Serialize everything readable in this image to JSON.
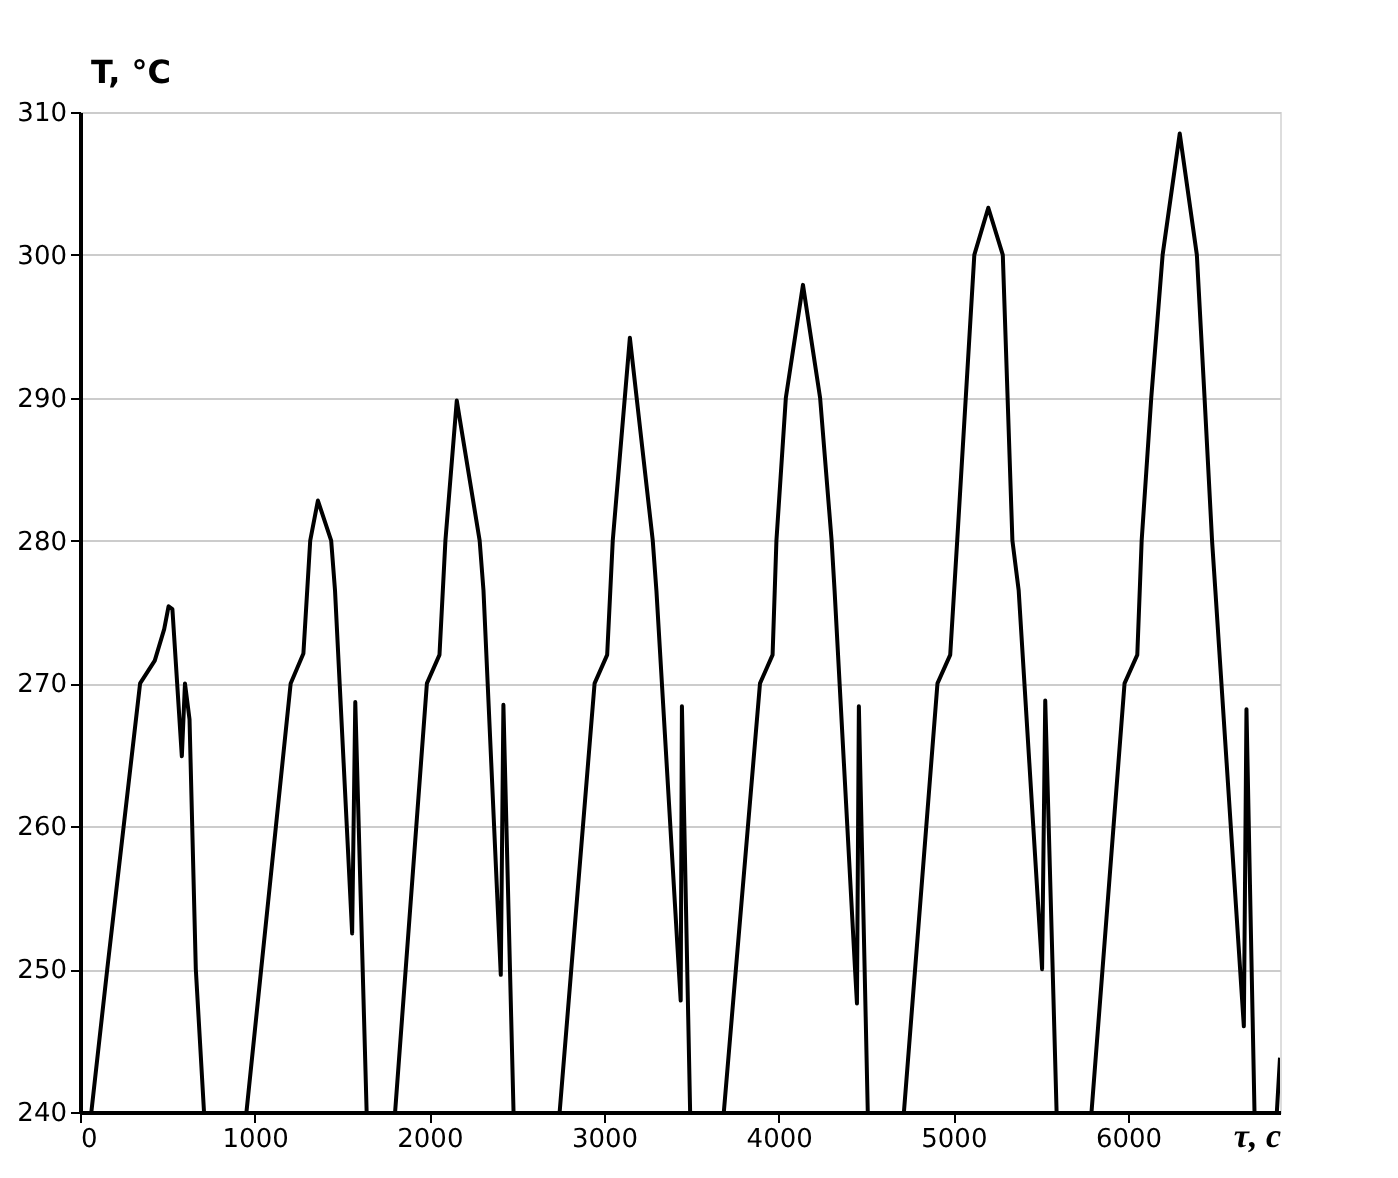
{
  "chart_data": {
    "type": "line",
    "xlabel": "τ, c",
    "ylabel": "T, °C",
    "xlim": [
      0,
      6870
    ],
    "ylim": [
      240,
      310
    ],
    "xticks": [
      0,
      1000,
      2000,
      3000,
      4000,
      5000,
      6000
    ],
    "yticks": [
      240,
      250,
      260,
      270,
      280,
      290,
      300,
      310
    ],
    "grid": "y",
    "marker": "none",
    "line_style": "solid",
    "x": [
      65,
      156,
      344,
      428,
      482,
      507,
      529,
      583,
      601,
      627,
      663,
      710,
      800,
      953,
      1206,
      1279,
      1318,
      1362,
      1438,
      1460,
      1558,
      1576,
      1641,
      1700,
      1804,
      1986,
      2058,
      2092,
      2157,
      2288,
      2310,
      2409,
      2424,
      2482,
      2600,
      2746,
      2946,
      3018,
      3050,
      3148,
      3279,
      3300,
      3428,
      3439,
      3446,
      3493,
      3600,
      3686,
      3893,
      3965,
      3987,
      4041,
      4139,
      4237,
      4303,
      4320,
      4437,
      4448,
      4459,
      4510,
      4600,
      4717,
      4909,
      4982,
      5022,
      5120,
      5200,
      5283,
      5338,
      5374,
      5508,
      5526,
      5591,
      5700,
      5791,
      5980,
      6053,
      6078,
      6133,
      6198,
      6296,
      6394,
      6438,
      6481,
      6500,
      6663,
      6678,
      6724,
      6800,
      6852,
      6870
    ],
    "series": [
      {
        "color": "#000000",
        "values": [
          240,
          250,
          270,
          271.6,
          273.8,
          275.4,
          275.2,
          264.9,
          270,
          267.5,
          250,
          240,
          null,
          240,
          270,
          272.1,
          280,
          282.8,
          280,
          276.5,
          252.5,
          268.7,
          240,
          null,
          240,
          270,
          272,
          280,
          289.8,
          280,
          276.5,
          249.6,
          268.5,
          240,
          null,
          240,
          270,
          272,
          280,
          294.2,
          280,
          276.5,
          250,
          247.8,
          268.4,
          240,
          null,
          240,
          270,
          272,
          280,
          290,
          297.9,
          290,
          280,
          276.5,
          250,
          247.6,
          268.4,
          240,
          null,
          240,
          270,
          272,
          280,
          300,
          303.3,
          300,
          280,
          276.5,
          250,
          268.8,
          240,
          null,
          240,
          270,
          272,
          280,
          290,
          300,
          308.5,
          300,
          290,
          280,
          276.5,
          246,
          268.2,
          240,
          null,
          240,
          243.8
        ]
      }
    ]
  }
}
